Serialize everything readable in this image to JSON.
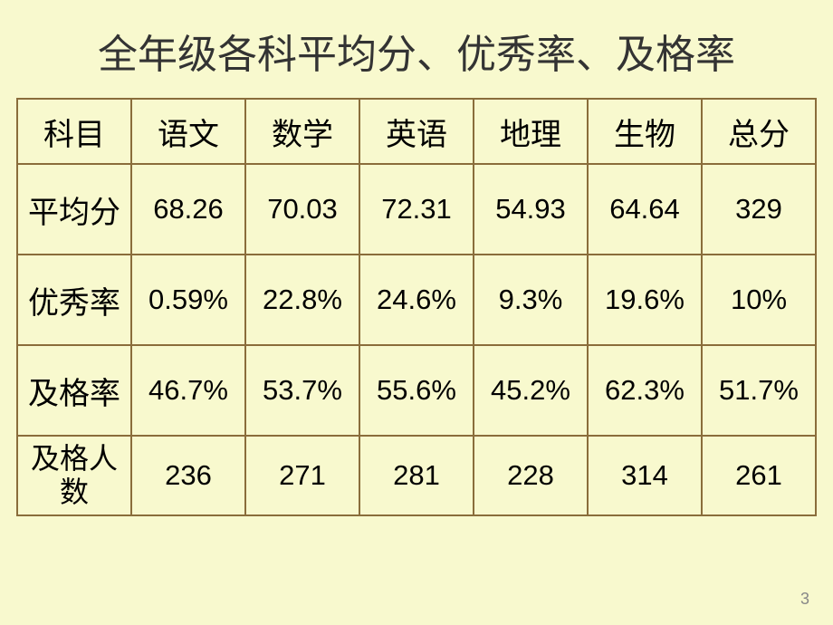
{
  "title": "全年级各科平均分、优秀率、及格率",
  "table": {
    "columns": [
      "科目",
      "语文",
      "数学",
      "英语",
      "地理",
      "生物",
      "总分"
    ],
    "rows": [
      {
        "label": "平均分",
        "cells": [
          "68.26",
          "70.03",
          "72.31",
          "54.93",
          "64.64",
          "329"
        ],
        "highlight_index": -1
      },
      {
        "label": "优秀率",
        "cells": [
          "0.59%",
          "22.8%",
          "24.6%",
          "9.3%",
          "19.6%",
          "10%"
        ],
        "highlight_index": -1
      },
      {
        "label": "及格率",
        "cells": [
          "46.7%",
          "53.7%",
          "55.6%",
          "45.2%",
          "62.3%",
          "51.7%"
        ],
        "highlight_index": -1
      },
      {
        "label": "及格人数",
        "cells": [
          "236",
          "271",
          "281",
          "228",
          "314",
          "261"
        ],
        "highlight_index": 5
      }
    ],
    "border_color": "#8a6d3b",
    "background_color": "#f8f9ce",
    "highlight_color": "#d94b18",
    "title_fontsize": 44,
    "header_fontsize": 34,
    "cell_fontsize": 31
  },
  "page_number": "3"
}
